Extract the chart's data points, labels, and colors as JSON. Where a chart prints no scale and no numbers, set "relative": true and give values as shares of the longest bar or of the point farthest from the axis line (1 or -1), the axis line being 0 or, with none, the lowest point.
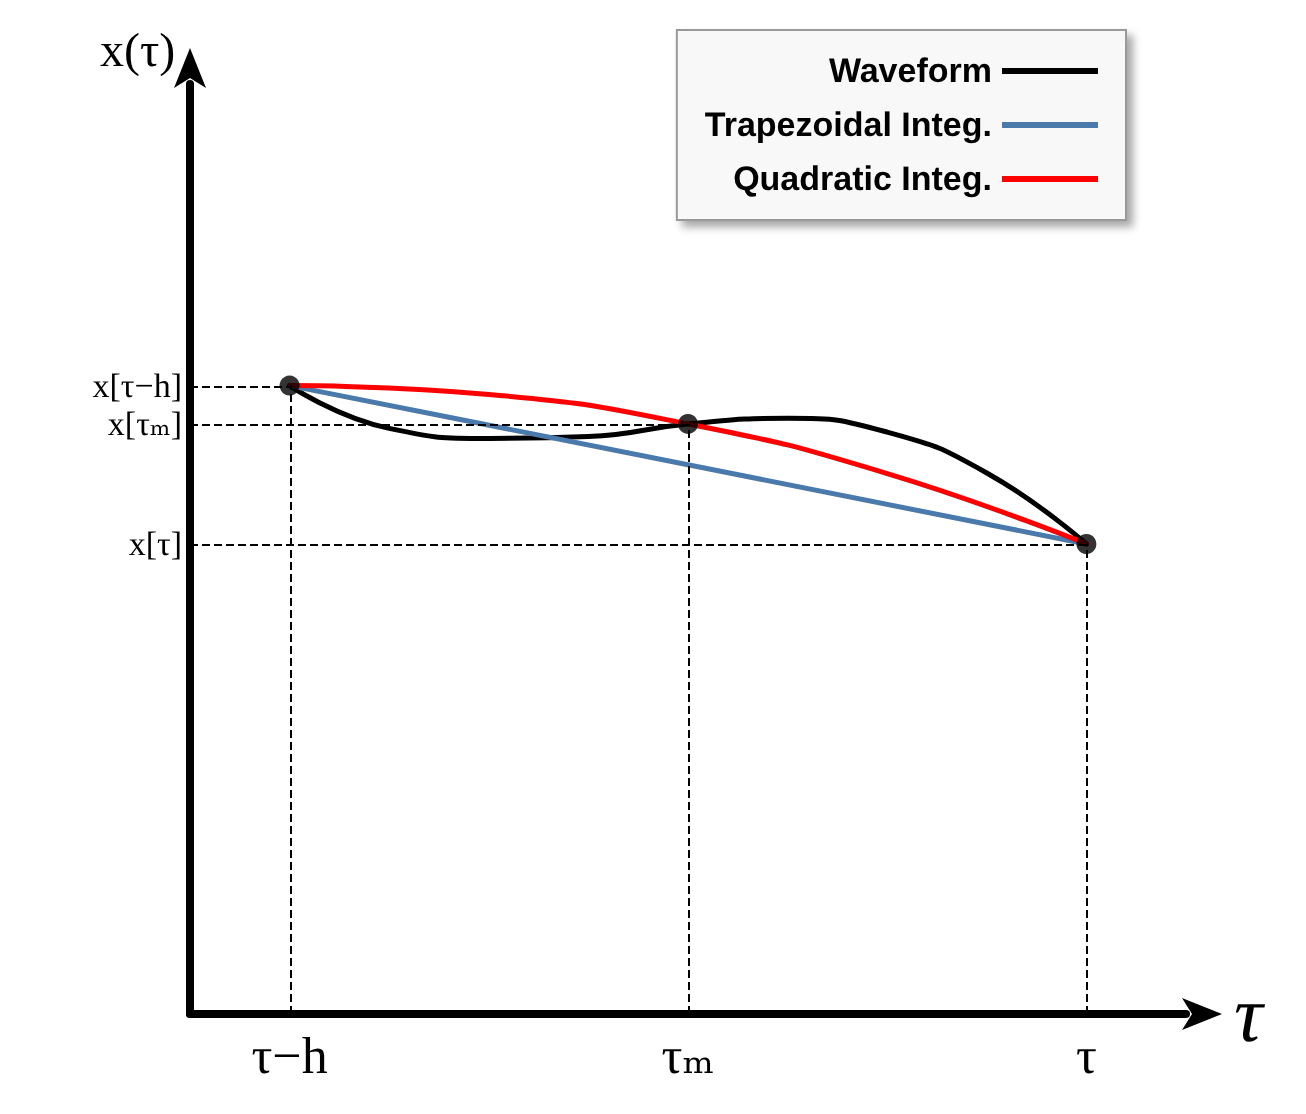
{
  "chart_data": {
    "type": "line",
    "relative": true,
    "xlabel": "τ",
    "annotations": [
      "x(τ)"
    ],
    "categories": [
      null,
      "τ−h",
      null,
      null,
      null,
      "τₘ",
      null,
      null,
      null,
      "τ",
      null
    ],
    "series": [
      {
        "name": "Waveform",
        "color": "#000000",
        "values": [
          null,
          1,
          0.932,
          0.916,
          0.919,
          0.939,
          0.948,
          0.926,
          0.861,
          0.748,
          null
        ]
      },
      {
        "name": "Trapezoidal Integ.",
        "color": "#4a7aab",
        "values": [
          null,
          1,
          null,
          null,
          null,
          null,
          null,
          null,
          null,
          0.748,
          null
        ]
      },
      {
        "name": "Quadratic Integ.",
        "color": "#ff0000",
        "values": [
          null,
          1,
          null,
          0.986,
          null,
          0.939,
          null,
          0.86,
          null,
          0.748,
          null
        ]
      },
      {
        "type": "scatter",
        "color": "#000000",
        "marker": "circle",
        "x": [
          "τ−h",
          "τₘ",
          "τ"
        ],
        "values": [
          1,
          0.939,
          0.748
        ]
      }
    ],
    "ref_lines": [
      {
        "axis": "y",
        "value": 1,
        "label": "x[τ−h]",
        "line_style": "dashed"
      },
      {
        "axis": "y",
        "value": 0.939,
        "label": "x[τₘ]",
        "line_style": "dashed"
      },
      {
        "axis": "y",
        "value": 0.748,
        "label": "x[τ]",
        "line_style": "dashed"
      },
      {
        "axis": "x",
        "value": "τ−h",
        "line_style": "dashed"
      },
      {
        "axis": "x",
        "value": "τₘ",
        "line_style": "dashed"
      },
      {
        "axis": "x",
        "value": "τ",
        "line_style": "dashed"
      }
    ],
    "legend": "top right",
    "line_style": "solid",
    "grid": false
  }
}
